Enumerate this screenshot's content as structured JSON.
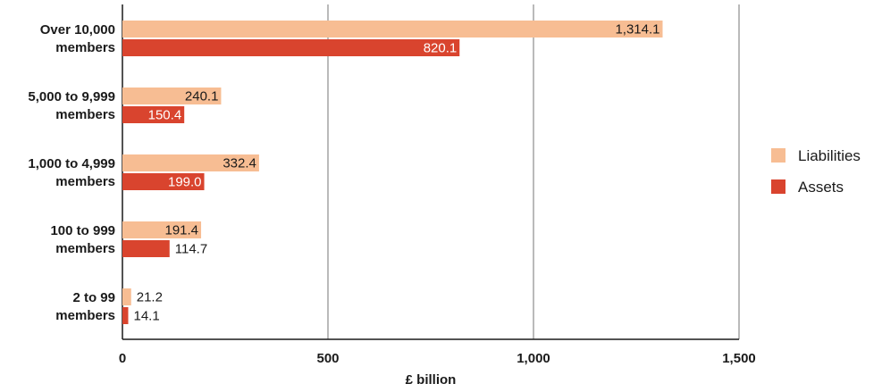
{
  "chart_data": {
    "type": "bar",
    "orientation": "horizontal",
    "categories": [
      "Over 10,000 members",
      "5,000 to 9,999 members",
      "1,000 to 4,999 members",
      "100 to 999 members",
      "2 to 99 members"
    ],
    "category_lines": [
      [
        "Over 10,000",
        "members"
      ],
      [
        "5,000 to 9,999",
        "members"
      ],
      [
        "1,000 to 4,999",
        "members"
      ],
      [
        "100 to 999",
        "members"
      ],
      [
        "2 to 99",
        "members"
      ]
    ],
    "series": [
      {
        "name": "Liabilities",
        "color": "#f7bd93",
        "values": [
          1314.1,
          240.1,
          332.4,
          191.4,
          21.2
        ],
        "labels": [
          "1,314.1",
          "240.1",
          "332.4",
          "191.4",
          "21.2"
        ]
      },
      {
        "name": "Assets",
        "color": "#d9442e",
        "values": [
          820.1,
          150.4,
          199.0,
          114.7,
          14.1
        ],
        "labels": [
          "820.1",
          "150.4",
          "199.0",
          "114.7",
          "14.1"
        ]
      }
    ],
    "xlabel": "£ billion",
    "ylabel": "",
    "xlim": [
      0,
      1500
    ],
    "xticks": [
      0,
      500,
      1000,
      1500
    ],
    "xtick_labels": [
      "0",
      "500",
      "1,000",
      "1,500"
    ],
    "grid": true,
    "legend_position": "right"
  }
}
